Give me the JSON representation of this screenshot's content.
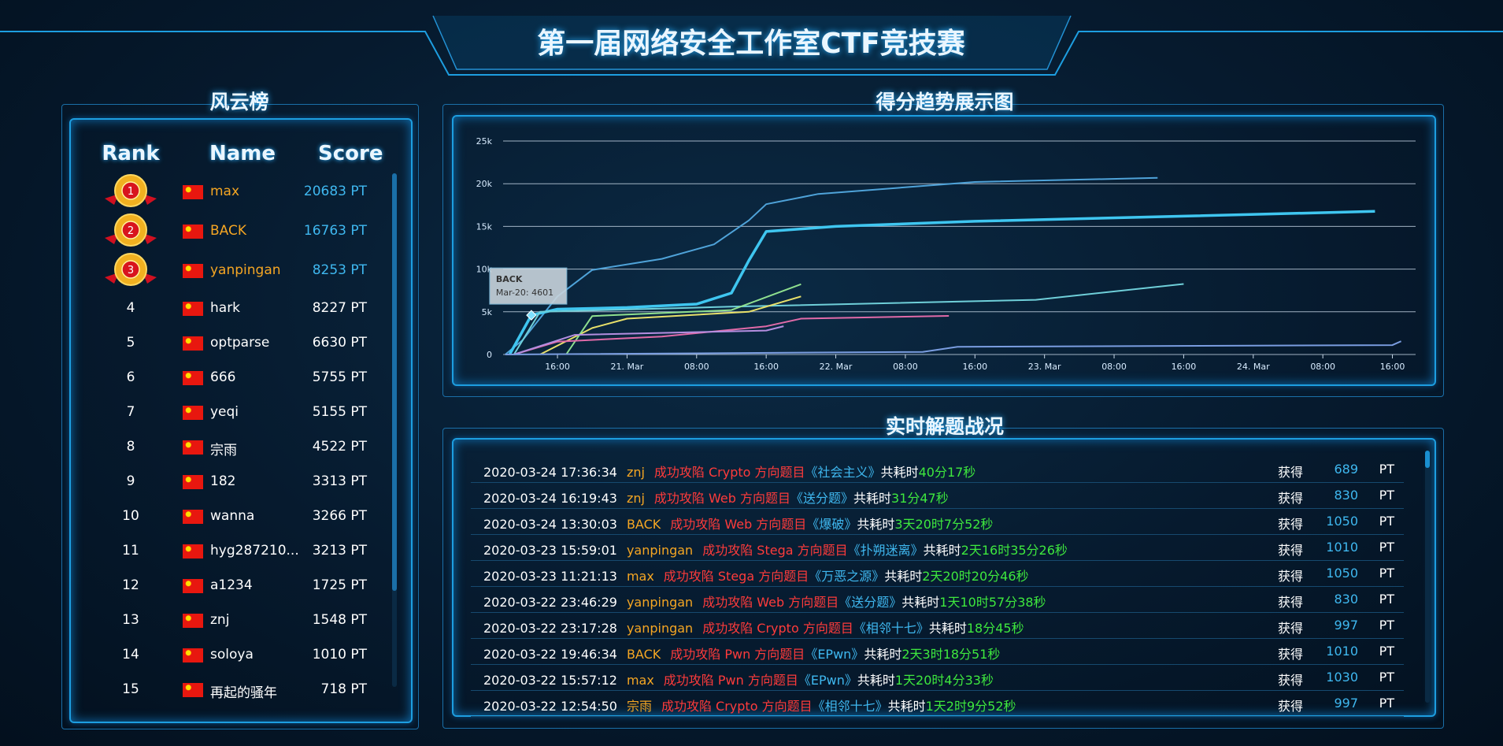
{
  "header": {
    "title": "第一届网络安全工作室CTF竞技赛"
  },
  "leaderboard": {
    "title": "风云榜",
    "columns": [
      "Rank",
      "Name",
      "Score"
    ],
    "rows": [
      {
        "rank": "1",
        "name": "max",
        "score": "20683 PT"
      },
      {
        "rank": "2",
        "name": "BACK",
        "score": "16763 PT"
      },
      {
        "rank": "3",
        "name": "yanpingan",
        "score": "8253 PT"
      },
      {
        "rank": "4",
        "name": "hark",
        "score": "8227 PT"
      },
      {
        "rank": "5",
        "name": "optparse",
        "score": "6630 PT"
      },
      {
        "rank": "6",
        "name": "666",
        "score": "5755 PT"
      },
      {
        "rank": "7",
        "name": "yeqi",
        "score": "5155 PT"
      },
      {
        "rank": "8",
        "name": "宗雨",
        "score": "4522 PT"
      },
      {
        "rank": "9",
        "name": "182",
        "score": "3313 PT"
      },
      {
        "rank": "10",
        "name": "wanna",
        "score": "3266 PT"
      },
      {
        "rank": "11",
        "name": "hyg287210...",
        "score": "3213 PT"
      },
      {
        "rank": "12",
        "name": "a1234",
        "score": "1725 PT"
      },
      {
        "rank": "13",
        "name": "znj",
        "score": "1548 PT"
      },
      {
        "rank": "14",
        "name": "soloya",
        "score": "1010 PT"
      },
      {
        "rank": "15",
        "name": "再起的骚年",
        "score": "718 PT"
      }
    ]
  },
  "chart_data": {
    "type": "line",
    "title": "得分趋势展示图",
    "xlim": [
      "Mar-20 09:45",
      "Mar-24 18:40"
    ],
    "xticks": [
      {
        "value": "Mar-20 16:00",
        "label": "16:00"
      },
      {
        "value": "Mar-21 00:00",
        "label": "21. Mar"
      },
      {
        "value": "Mar-21 08:00",
        "label": "08:00"
      },
      {
        "value": "Mar-21 16:00",
        "label": "16:00"
      },
      {
        "value": "Mar-22 00:00",
        "label": "22. Mar"
      },
      {
        "value": "Mar-22 08:00",
        "label": "08:00"
      },
      {
        "value": "Mar-22 16:00",
        "label": "16:00"
      },
      {
        "value": "Mar-23 00:00",
        "label": "23. Mar"
      },
      {
        "value": "Mar-23 08:00",
        "label": "08:00"
      },
      {
        "value": "Mar-23 16:00",
        "label": "16:00"
      },
      {
        "value": "Mar-24 00:00",
        "label": "24. Mar"
      },
      {
        "value": "Mar-24 08:00",
        "label": "08:00"
      },
      {
        "value": "Mar-24 16:00",
        "label": "16:00"
      }
    ],
    "ylim": [
      0,
      25000
    ],
    "yticks": [
      0,
      {
        "value": 5000,
        "label": "5k"
      },
      {
        "value": 10000,
        "label": "10k"
      },
      {
        "value": 15000,
        "label": "15k"
      },
      {
        "value": 20000,
        "label": "20k"
      },
      {
        "value": 25000,
        "label": "25k"
      }
    ],
    "grid": true,
    "series": [
      {
        "color": "#4fa3d9",
        "width": 2,
        "x": [
          "Mar-20 10:00",
          "Mar-20 12:00",
          "Mar-20 16:00",
          "Mar-20 20:00",
          "Mar-21 04:00",
          "Mar-21 10:00",
          "Mar-21 14:00",
          "Mar-21 16:00",
          "Mar-21 22:00",
          "Mar-22 16:00",
          "Mar-23 13:00"
        ],
        "values": [
          0,
          1700,
          6800,
          9900,
          11200,
          12900,
          15700,
          17600,
          18800,
          20200,
          20683
        ]
      },
      {
        "color": "#3fc6f0",
        "width": 3.5,
        "x": [
          "Mar-20 10:30",
          "Mar-20 13:00",
          "Mar-20 16:00",
          "Mar-21 00:00",
          "Mar-21 08:00",
          "Mar-21 12:00",
          "Mar-21 14:00",
          "Mar-21 16:00",
          "Mar-22 00:00",
          "Mar-22 16:00",
          "Mar-23 16:00",
          "Mar-24 14:00"
        ],
        "values": [
          0,
          4601,
          5300,
          5500,
          5900,
          7200,
          11000,
          14400,
          15000,
          15600,
          16200,
          16763
        ]
      },
      {
        "color": "#6fcfd9",
        "width": 2,
        "x": [
          "Mar-20 11:00",
          "Mar-20 14:00",
          "Mar-21 12:00",
          "Mar-22 23:00",
          "Mar-23 16:00"
        ],
        "values": [
          0,
          5000,
          5600,
          6400,
          8253
        ]
      },
      {
        "color": "#e8e06a",
        "width": 2,
        "x": [
          "Mar-20 14:00",
          "Mar-20 20:00",
          "Mar-21 00:00",
          "Mar-21 14:00",
          "Mar-21 20:00"
        ],
        "values": [
          0,
          3100,
          4200,
          5000,
          6800
        ]
      },
      {
        "color": "#8fe08f",
        "width": 2,
        "x": [
          "Mar-20 17:00",
          "Mar-20 20:00",
          "Mar-21 12:00",
          "Mar-21 20:00"
        ],
        "values": [
          0,
          4500,
          5200,
          8227
        ]
      },
      {
        "color": "#e06aa8",
        "width": 2,
        "x": [
          "Mar-20 11:00",
          "Mar-20 16:00",
          "Mar-21 04:00",
          "Mar-21 16:00",
          "Mar-21 20:00",
          "Mar-22 13:00"
        ],
        "values": [
          0,
          1500,
          2100,
          3300,
          4200,
          4522
        ]
      },
      {
        "color": "#b48ee0",
        "width": 2,
        "x": [
          "Mar-20 11:00",
          "Mar-20 18:00",
          "Mar-21 16:00",
          "Mar-21 18:00"
        ],
        "values": [
          0,
          2300,
          2800,
          3313
        ]
      },
      {
        "color": "#7a9de0",
        "width": 2,
        "x": [
          "Mar-20 10:00",
          "Mar-22 10:00",
          "Mar-22 14:00",
          "Mar-24 16:00",
          "Mar-24 17:00"
        ],
        "values": [
          0,
          300,
          900,
          1100,
          1548
        ]
      }
    ],
    "tooltip": {
      "series": 1,
      "point": 1,
      "title": "BACK",
      "text": "Mar-20: 4601"
    }
  },
  "feed": {
    "title": "实时解题战况",
    "labels": {
      "took": "共耗时",
      "gain": "获得",
      "unit": "PT"
    },
    "rows": [
      {
        "time": "2020-03-24 17:36:34",
        "user": "znj",
        "action": "成功攻陷 Crypto 方向题目",
        "challenge": "《社会主义》",
        "duration": "40分17秒",
        "points": "689"
      },
      {
        "time": "2020-03-24 16:19:43",
        "user": "znj",
        "action": "成功攻陷 Web 方向题目",
        "challenge": "《送分题》",
        "duration": "31分47秒",
        "points": "830"
      },
      {
        "time": "2020-03-24 13:30:03",
        "user": "BACK",
        "action": "成功攻陷 Web 方向题目",
        "challenge": "《爆破》",
        "duration": "3天20时7分52秒",
        "points": "1050"
      },
      {
        "time": "2020-03-23 15:59:01",
        "user": "yanpingan",
        "action": "成功攻陷 Stega 方向题目",
        "challenge": "《扑朔迷离》",
        "duration": "2天16时35分26秒",
        "points": "1010"
      },
      {
        "time": "2020-03-23 11:21:13",
        "user": "max",
        "action": "成功攻陷 Stega 方向题目",
        "challenge": "《万恶之源》",
        "duration": "2天20时20分46秒",
        "points": "1050"
      },
      {
        "time": "2020-03-22 23:46:29",
        "user": "yanpingan",
        "action": "成功攻陷 Web 方向题目",
        "challenge": "《送分题》",
        "duration": "1天10时57分38秒",
        "points": "830"
      },
      {
        "time": "2020-03-22 23:17:28",
        "user": "yanpingan",
        "action": "成功攻陷 Crypto 方向题目",
        "challenge": "《相邻十七》",
        "duration": "18分45秒",
        "points": "997"
      },
      {
        "time": "2020-03-22 19:46:34",
        "user": "BACK",
        "action": "成功攻陷 Pwn 方向题目",
        "challenge": "《EPwn》",
        "duration": "2天3时18分51秒",
        "points": "1010"
      },
      {
        "time": "2020-03-22 15:57:12",
        "user": "max",
        "action": "成功攻陷 Pwn 方向题目",
        "challenge": "《EPwn》",
        "duration": "1天20时4分33秒",
        "points": "1030"
      },
      {
        "time": "2020-03-22 12:54:50",
        "user": "宗雨",
        "action": "成功攻陷 Crypto 方向题目",
        "challenge": "《相邻十七》",
        "duration": "1天2时9分52秒",
        "points": "997"
      }
    ]
  }
}
